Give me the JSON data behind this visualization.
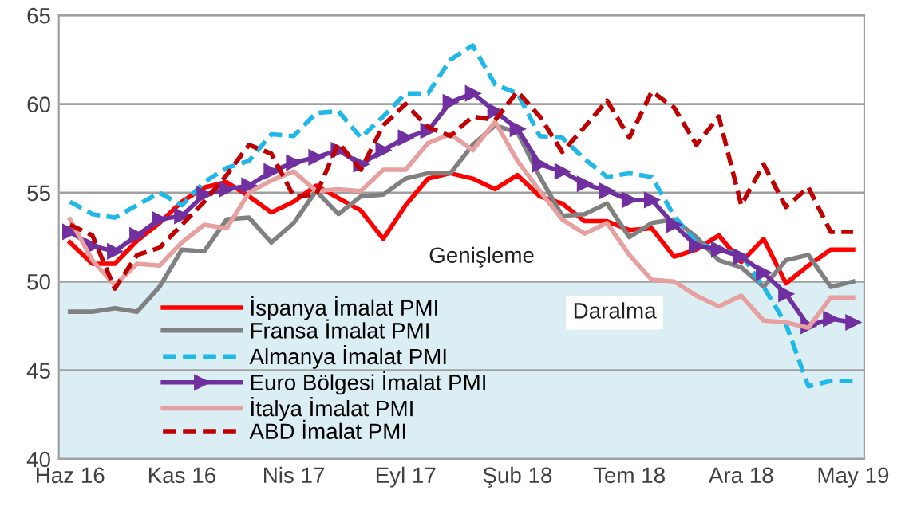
{
  "chart_data": {
    "type": "line",
    "categories": [
      "Haz 16",
      null,
      null,
      null,
      null,
      "Kas 16",
      null,
      null,
      null,
      null,
      "Nis 17",
      null,
      null,
      null,
      null,
      "Eyl 17",
      null,
      null,
      null,
      null,
      "Şub 18",
      null,
      null,
      null,
      null,
      "Tem 18",
      null,
      null,
      null,
      null,
      "Ara 18",
      null,
      null,
      null,
      null,
      "May 19"
    ],
    "series": [
      {
        "name": "İspanya İmalat PMI",
        "color": "#ff0000",
        "line_style": "solid",
        "marker": "none",
        "values": [
          52.2,
          51.0,
          51.0,
          52.3,
          53.3,
          54.5,
          55.3,
          55.6,
          54.8,
          53.9,
          54.5,
          55.4,
          54.7,
          54.0,
          52.4,
          54.3,
          55.8,
          56.1,
          55.8,
          55.2,
          56.0,
          54.8,
          54.4,
          53.4,
          53.4,
          52.9,
          53.0,
          51.4,
          51.8,
          52.6,
          51.1,
          52.4,
          49.9,
          50.9,
          51.8,
          51.8
        ]
      },
      {
        "name": "Fransa İmalat PMI",
        "color": "#808080",
        "line_style": "solid",
        "marker": "none",
        "values": [
          48.3,
          48.3,
          48.5,
          48.3,
          49.7,
          51.8,
          51.7,
          53.5,
          53.6,
          52.2,
          53.3,
          55.1,
          53.8,
          54.8,
          54.9,
          55.8,
          56.1,
          56.1,
          57.7,
          58.8,
          58.4,
          55.9,
          53.7,
          53.8,
          54.4,
          52.5,
          53.3,
          53.5,
          52.5,
          51.2,
          50.8,
          49.7,
          51.2,
          51.5,
          49.7,
          50.0
        ]
      },
      {
        "name": "Almanya İmalat PMI",
        "color": "#1fb8e8",
        "line_style": "dashed",
        "marker": "none",
        "values": [
          54.5,
          53.8,
          53.6,
          54.3,
          55.0,
          54.3,
          55.6,
          56.4,
          56.8,
          58.3,
          58.2,
          59.5,
          59.6,
          58.1,
          59.3,
          60.6,
          60.6,
          62.5,
          63.3,
          61.1,
          60.6,
          58.2,
          58.1,
          56.9,
          55.9,
          56.1,
          55.9,
          53.7,
          52.2,
          51.8,
          51.5,
          49.7,
          47.6,
          44.1,
          44.4,
          44.4
        ]
      },
      {
        "name": "Euro Bölgesi İmalat PMI",
        "color": "#7030a0",
        "line_style": "solid",
        "marker": "triangle",
        "values": [
          52.8,
          52.0,
          51.7,
          52.6,
          53.5,
          53.7,
          54.9,
          55.2,
          55.4,
          56.2,
          56.7,
          57.0,
          57.4,
          56.6,
          57.4,
          58.1,
          58.5,
          60.1,
          60.6,
          59.6,
          58.6,
          56.6,
          56.2,
          55.5,
          55.1,
          54.6,
          54.6,
          53.2,
          52.0,
          51.8,
          51.4,
          50.5,
          49.3,
          47.5,
          47.9,
          47.7
        ]
      },
      {
        "name": "İtalya İmalat PMI",
        "color": "#e6a0a0",
        "line_style": "solid",
        "marker": "none",
        "values": [
          53.5,
          51.2,
          49.8,
          51.0,
          50.9,
          52.2,
          53.2,
          53.0,
          55.0,
          55.7,
          56.2,
          55.1,
          55.2,
          55.1,
          56.3,
          56.3,
          57.8,
          58.3,
          57.4,
          59.0,
          56.8,
          55.1,
          53.5,
          52.7,
          53.3,
          51.5,
          50.1,
          50.0,
          49.2,
          48.6,
          49.2,
          47.8,
          47.7,
          47.4,
          49.1,
          49.1
        ]
      },
      {
        "name": "ABD İmalat PMI",
        "color": "#c00000",
        "line_style": "dashed",
        "marker": "none",
        "values": [
          53.2,
          52.6,
          49.6,
          51.5,
          51.9,
          53.2,
          54.5,
          56.0,
          57.7,
          57.2,
          54.8,
          54.9,
          57.8,
          56.3,
          58.8,
          60.0,
          58.7,
          58.2,
          59.3,
          59.1,
          60.7,
          59.3,
          57.3,
          58.7,
          60.2,
          58.1,
          60.7,
          59.8,
          57.7,
          59.3,
          54.3,
          56.6,
          54.2,
          55.3,
          52.8,
          52.8
        ]
      }
    ],
    "ylim": [
      40,
      65
    ],
    "yticks": [
      40,
      45,
      50,
      55,
      60,
      65
    ],
    "grid": "y",
    "legend": "bottom left",
    "bands": [
      {
        "axis": "y",
        "from": 40,
        "to": 50,
        "color": "#daeef3"
      }
    ],
    "annotations": [
      "Genişleme",
      "Daralma"
    ]
  }
}
